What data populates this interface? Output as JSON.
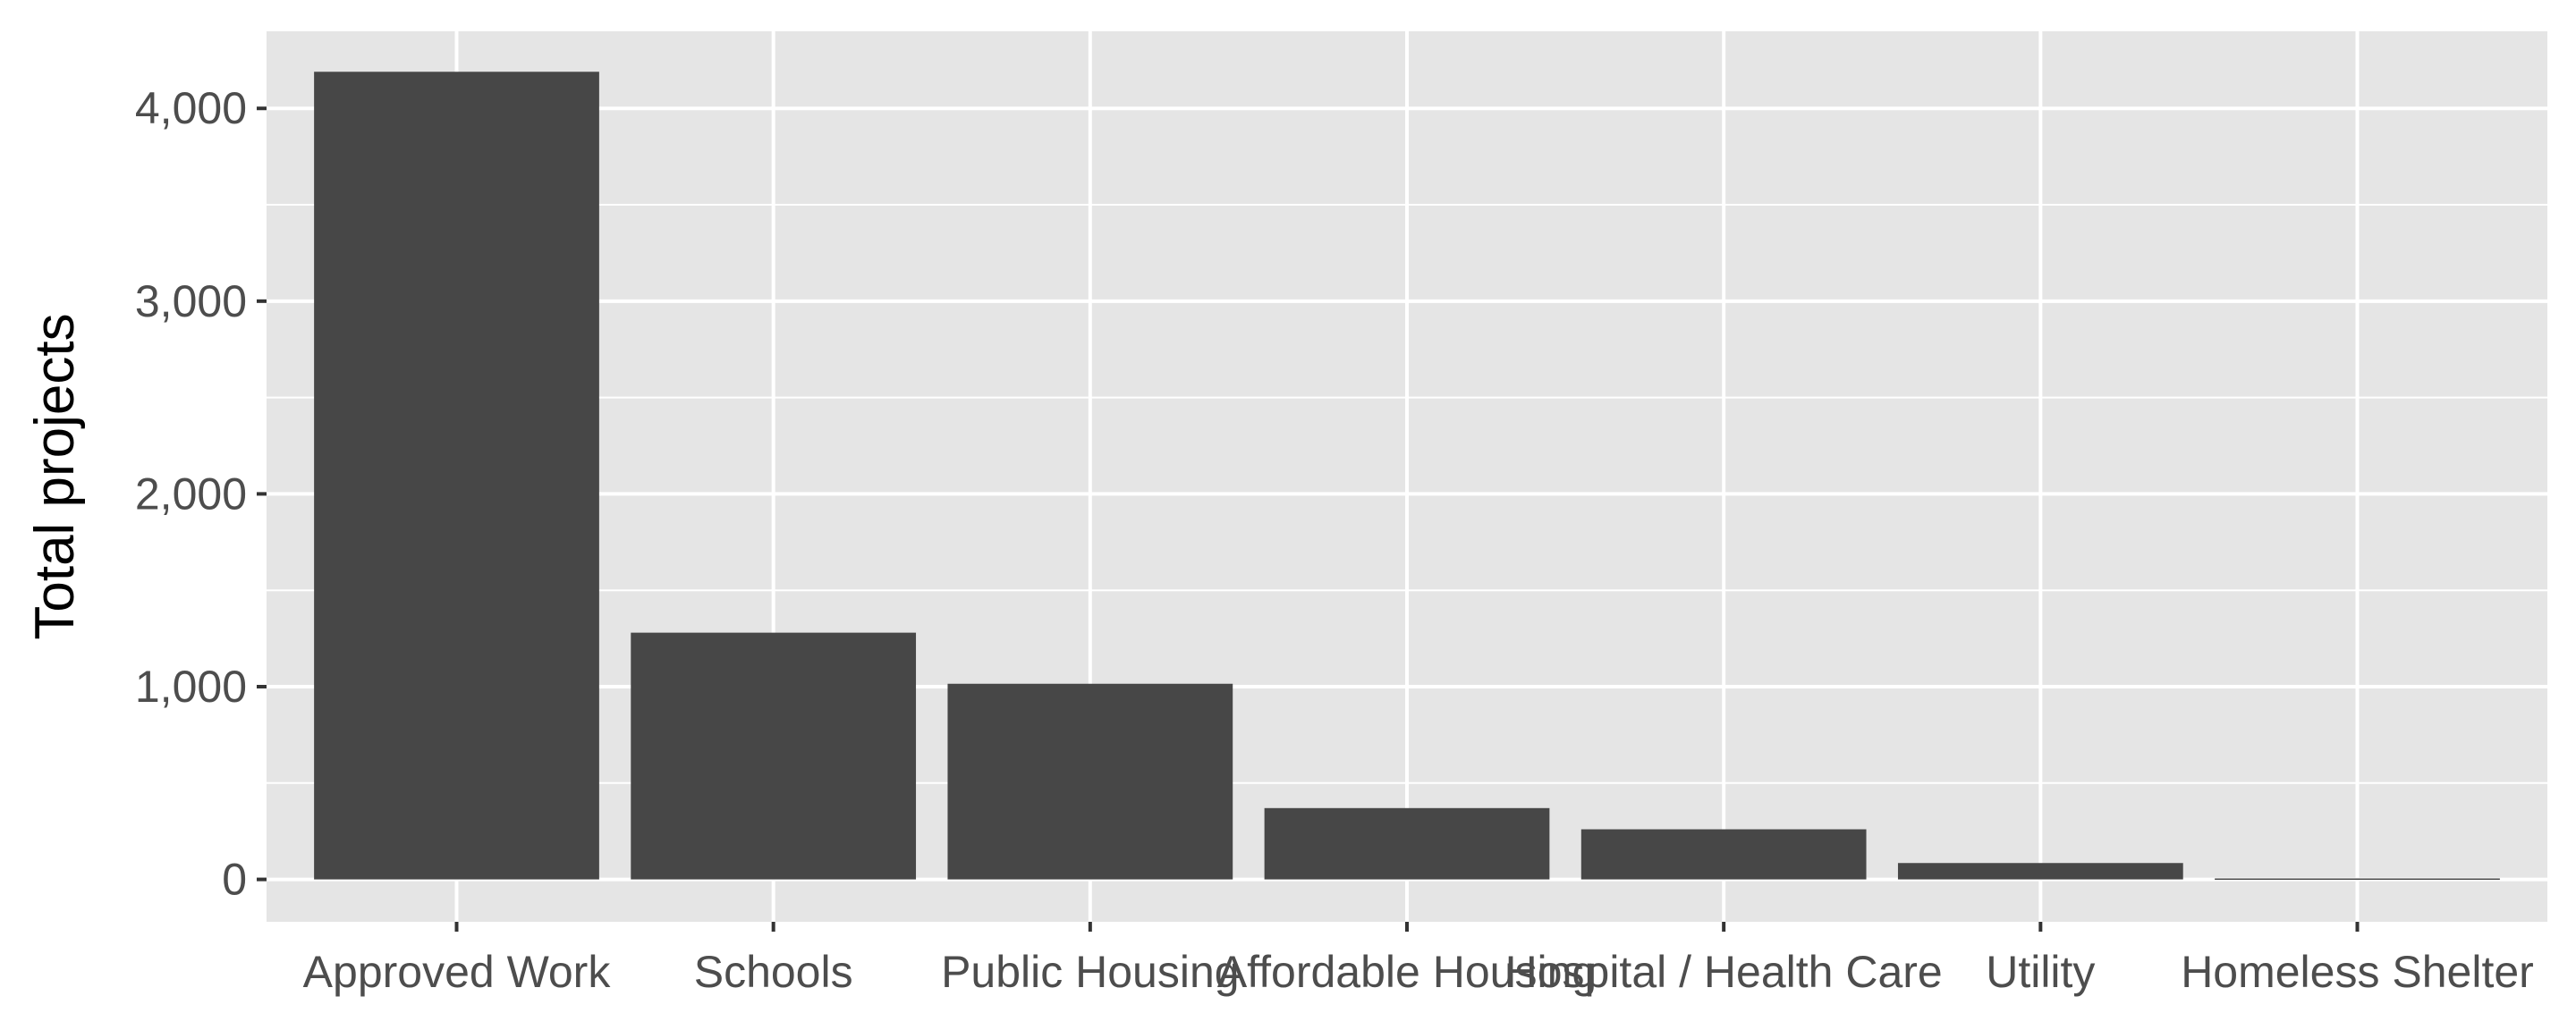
{
  "chart_data": {
    "type": "bar",
    "title": "",
    "xlabel": "",
    "ylabel": "Total projects",
    "categories": [
      "Approved Work",
      "Schools",
      "Public Housing",
      "Affordable Housing",
      "Hospital / Health Care",
      "Utility",
      "Homeless Shelter"
    ],
    "values": [
      4190,
      1280,
      1015,
      370,
      260,
      85,
      5
    ],
    "ylim": [
      -220,
      4400
    ],
    "yticks": [
      0,
      1000,
      2000,
      3000,
      4000
    ],
    "ytick_labels": [
      "0",
      "1,000",
      "2,000",
      "3,000",
      "4,000"
    ],
    "grid": true,
    "legend": "none",
    "colors": {
      "bar": "#474747",
      "panel": "#e5e5e5",
      "grid": "#ffffff",
      "tick": "#333333"
    }
  }
}
